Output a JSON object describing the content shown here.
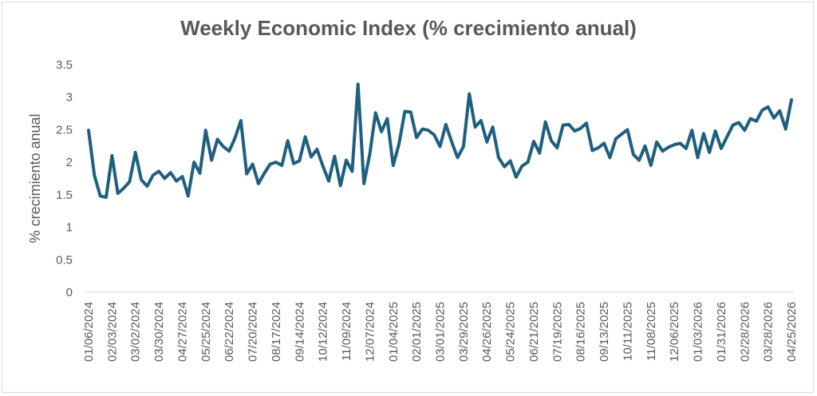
{
  "chart_data": {
    "type": "line",
    "title": "Weekly Economic Index (% crecimiento anual)",
    "xlabel": "",
    "ylabel": "% crecimiento anual",
    "ylim": [
      0,
      3.5
    ],
    "y_ticks": [
      "0",
      "0.5",
      "1",
      "1.5",
      "2",
      "2.5",
      "3",
      "3.5"
    ],
    "grid": false,
    "x_tick_labels": [
      "01/06/2024",
      "02/03/2024",
      "03/02/2024",
      "03/30/2024",
      "04/27/2024",
      "05/25/2024",
      "06/22/2024",
      "07/20/2024",
      "08/17/2024",
      "09/14/2024",
      "10/12/2024",
      "11/09/2024",
      "12/07/2024",
      "01/04/2025",
      "02/01/2025",
      "03/01/2025",
      "03/29/2025",
      "04/26/2025",
      "05/24/2025",
      "06/21/2025",
      "07/19/2025",
      "08/16/2025",
      "09/13/2025",
      "10/11/2025",
      "11/08/2025",
      "12/06/2025",
      "01/03/2026",
      "01/31/2026",
      "02/28/2026",
      "03/28/2026",
      "04/25/2026"
    ],
    "series": [
      {
        "color": "#1f5f7f",
        "values": [
          2.49,
          1.8,
          1.48,
          1.46,
          2.1,
          1.52,
          1.6,
          1.7,
          2.15,
          1.73,
          1.63,
          1.8,
          1.86,
          1.75,
          1.84,
          1.71,
          1.78,
          1.48,
          2.0,
          1.83,
          2.49,
          2.03,
          2.35,
          2.24,
          2.17,
          2.37,
          2.64,
          1.82,
          1.97,
          1.67,
          1.83,
          1.97,
          2.0,
          1.95,
          2.33,
          1.98,
          2.02,
          2.39,
          2.08,
          2.2,
          1.94,
          1.71,
          2.09,
          1.64,
          2.03,
          1.86,
          3.2,
          1.67,
          2.12,
          2.76,
          2.47,
          2.67,
          1.95,
          2.28,
          2.78,
          2.77,
          2.38,
          2.51,
          2.49,
          2.42,
          2.24,
          2.58,
          2.31,
          2.07,
          2.24,
          3.05,
          2.54,
          2.64,
          2.31,
          2.54,
          2.07,
          1.93,
          2.02,
          1.77,
          1.94,
          2.0,
          2.32,
          2.14,
          2.62,
          2.33,
          2.22,
          2.57,
          2.58,
          2.48,
          2.52,
          2.6,
          2.18,
          2.22,
          2.29,
          2.07,
          2.36,
          2.43,
          2.5,
          2.12,
          2.03,
          2.25,
          1.95,
          2.31,
          2.17,
          2.23,
          2.27,
          2.29,
          2.21,
          2.49,
          2.07,
          2.44,
          2.15,
          2.48,
          2.21,
          2.39,
          2.57,
          2.61,
          2.49,
          2.67,
          2.63,
          2.8,
          2.85,
          2.68,
          2.79,
          2.51,
          2.96
        ]
      }
    ]
  }
}
